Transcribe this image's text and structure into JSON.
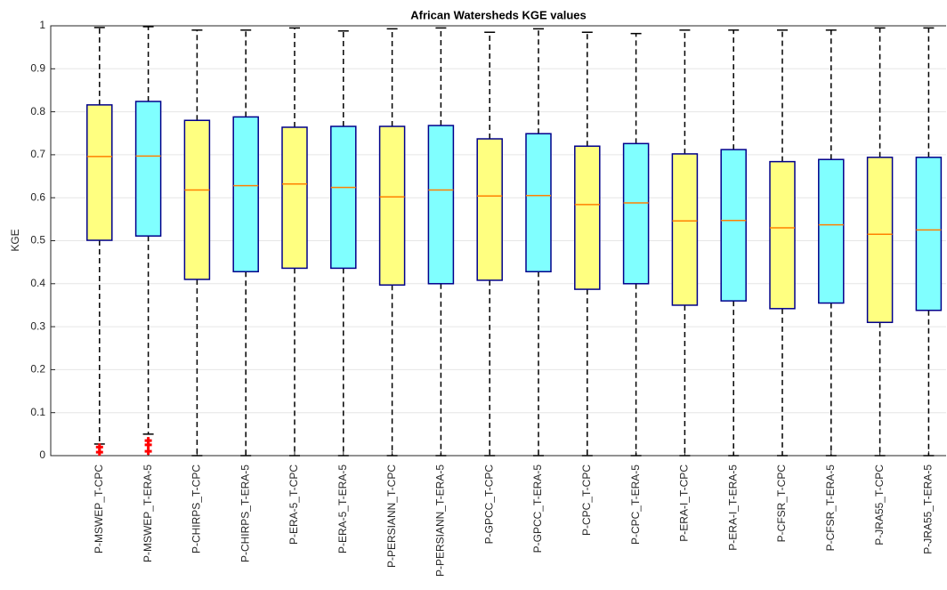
{
  "chart_data": {
    "type": "box",
    "title": "African Watersheds KGE values",
    "y_label": "KGE",
    "categories": [
      "P-MSWEP_T-CPC",
      "P-MSWEP_T-ERA-5",
      "P-CHIRPS_T-CPC",
      "P-CHIRPS_T-ERA-5",
      "P-ERA-5_T-CPC",
      "P-ERA-5_T-ERA-5",
      "P-PERSIANN_T-CPC",
      "P-PERSIANN_T-ERA-5",
      "P-GPCC_T-CPC",
      "P-GPCC_T-ERA-5",
      "P-CPC_T-CPC",
      "P-CPC_T-ERA-5",
      "P-ERA-I_T-CPC",
      "P-ERA-I_T-ERA-5",
      "P-CFSR_T-CPC",
      "P-CFSR_T-ERA-5",
      "P-JRA55_T-CPC",
      "P-JRA55_T-ERA-5"
    ],
    "whisker_low": [
      0.027,
      0.05,
      0,
      0,
      0,
      0,
      0,
      0,
      0,
      0,
      0,
      0,
      0,
      0,
      0,
      0,
      0,
      0
    ],
    "q1": [
      0.501,
      0.511,
      0.41,
      0.428,
      0.436,
      0.436,
      0.397,
      0.4,
      0.408,
      0.428,
      0.387,
      0.4,
      0.35,
      0.36,
      0.342,
      0.355,
      0.31,
      0.338
    ],
    "median": [
      0.696,
      0.697,
      0.618,
      0.628,
      0.632,
      0.624,
      0.602,
      0.618,
      0.604,
      0.605,
      0.584,
      0.588,
      0.546,
      0.547,
      0.53,
      0.537,
      0.515,
      0.525
    ],
    "q3": [
      0.816,
      0.824,
      0.78,
      0.788,
      0.764,
      0.766,
      0.766,
      0.768,
      0.737,
      0.749,
      0.72,
      0.726,
      0.702,
      0.712,
      0.684,
      0.689,
      0.694,
      0.694
    ],
    "whisker_high": [
      0.996,
      0.998,
      0.99,
      0.99,
      0.995,
      0.988,
      0.993,
      0.995,
      0.985,
      0.993,
      0.985,
      0.982,
      0.99,
      0.99,
      0.99,
      0.99,
      0.995,
      0.995
    ],
    "outliers": [
      [
        0.02,
        0.008
      ],
      [
        0.035,
        0.025,
        0.01
      ],
      [],
      [],
      [],
      [],
      [],
      [],
      [],
      [],
      [],
      [],
      [],
      [],
      [],
      [],
      [],
      []
    ],
    "box_colors": [
      "#ffff80",
      "#80ffff",
      "#ffff80",
      "#80ffff",
      "#ffff80",
      "#80ffff",
      "#ffff80",
      "#80ffff",
      "#ffff80",
      "#80ffff",
      "#ffff80",
      "#80ffff",
      "#ffff80",
      "#80ffff",
      "#ffff80",
      "#80ffff",
      "#ffff80",
      "#80ffff"
    ],
    "median_color": "#ff8000",
    "outlier_color": "#ff0000",
    "box_edge_color": "#00008b",
    "ylim": [
      0,
      1
    ],
    "yticks": [
      0,
      0.1,
      0.2,
      0.3,
      0.4,
      0.5,
      0.6,
      0.7,
      0.8,
      0.9,
      1
    ],
    "grid": true
  }
}
